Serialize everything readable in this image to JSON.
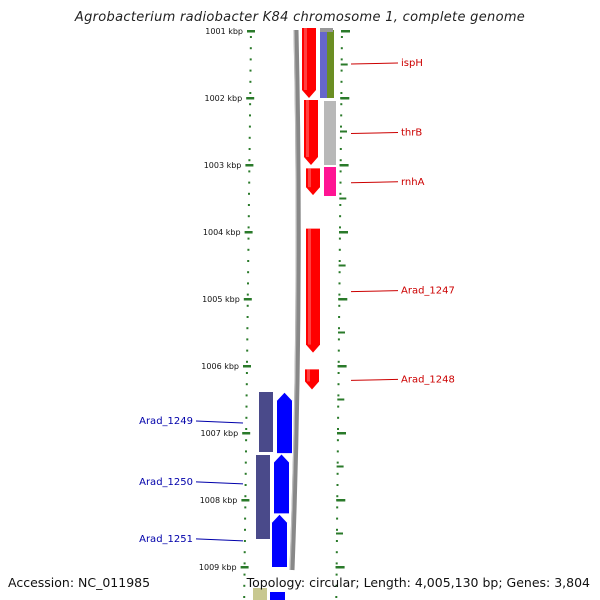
{
  "title": "Agrobacterium radiobacter K84 chromosome 1, complete genome",
  "footer": {
    "accession": "Accession: NC_011985",
    "summary": "Topology: circular; Length: 4,005,130 bp; Genes: 3,804"
  },
  "axis": {
    "unit": "kbp",
    "ticks": [
      {
        "value": 1001,
        "label": "1001 kbp"
      },
      {
        "value": 1002,
        "label": "1002 kbp"
      },
      {
        "value": 1003,
        "label": "1003 kbp"
      },
      {
        "value": 1004,
        "label": "1004 kbp"
      },
      {
        "value": 1005,
        "label": "1005 kbp"
      },
      {
        "value": 1006,
        "label": "1006 kbp"
      },
      {
        "value": 1007,
        "label": "1007 kbp"
      },
      {
        "value": 1008,
        "label": "1008 kbp"
      },
      {
        "value": 1009,
        "label": "1009 kbp"
      }
    ]
  },
  "colors": {
    "forward_gene": "#ff0000",
    "reverse_gene": "#0000ff",
    "forward_label": "#cc0000",
    "reverse_label": "#0000aa",
    "tick": "#2a7a2a",
    "backbone": "#888888",
    "cog_purple": "#6666cc",
    "cog_olive": "#6b8e23",
    "cog_grey": "#b8b8b8",
    "cog_magenta": "#ff1493",
    "cog_navy": "#4a4a8a",
    "cog_khaki": "#c8c890"
  },
  "forward_genes": [
    {
      "name": "ispH",
      "start": 1000.4,
      "end": 1002.0
    },
    {
      "name": "thrB",
      "start": 1002.03,
      "end": 1003.0
    },
    {
      "name": "rnhA",
      "start": 1003.05,
      "end": 1003.45
    },
    {
      "name": "Arad_1247",
      "start": 1003.95,
      "end": 1005.8
    },
    {
      "name": "Arad_1248",
      "start": 1006.05,
      "end": 1006.35
    }
  ],
  "reverse_genes": [
    {
      "name": "Arad_1249",
      "start": 1006.4,
      "end": 1007.3
    },
    {
      "name": "Arad_1250",
      "start": 1007.32,
      "end": 1008.2
    },
    {
      "name": "Arad_1251",
      "start": 1008.22,
      "end": 1009.0
    }
  ],
  "forward_labels": [
    {
      "gene": "ispH",
      "text": "ispH"
    },
    {
      "gene": "thrB",
      "text": "thrB"
    },
    {
      "gene": "rnhA",
      "text": "rnhA"
    },
    {
      "gene": "Arad_1247",
      "text": "Arad_1247"
    },
    {
      "gene": "Arad_1248",
      "text": "Arad_1248"
    }
  ],
  "reverse_labels": [
    {
      "gene": "Arad_1249",
      "text": "Arad_1249"
    },
    {
      "gene": "Arad_1250",
      "text": "Arad_1250"
    },
    {
      "gene": "Arad_1251",
      "text": "Arad_1251"
    }
  ]
}
